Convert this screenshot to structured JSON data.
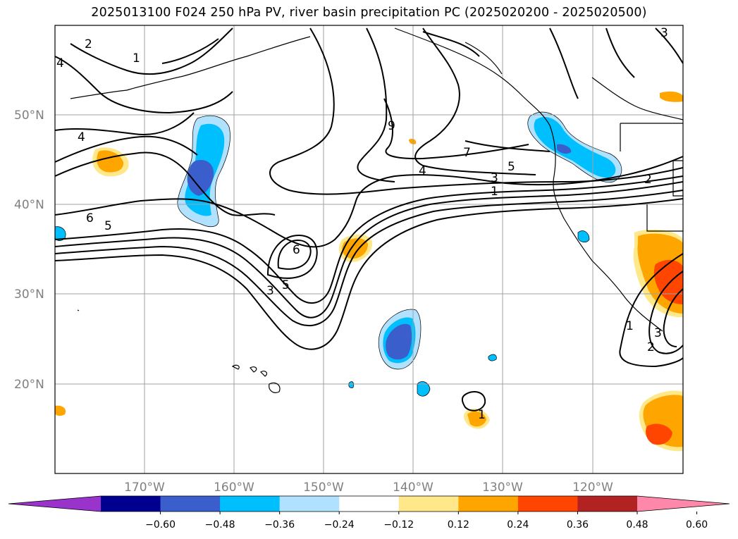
{
  "title": "2025013100 F024 250 hPa PV, river basin precipitation PC (2025020200 - 2025020500)",
  "map": {
    "lat_labels": [
      "50°N",
      "40°N",
      "30°N",
      "20°N"
    ],
    "lon_labels": [
      "170°W",
      "160°W",
      "150°W",
      "140°W",
      "130°W",
      "120°W"
    ],
    "contour_labels": [
      "2",
      "1",
      "4",
      "6",
      "5",
      "6",
      "3",
      "5",
      "9",
      "7",
      "4",
      "3",
      "5",
      "1",
      "2",
      "1",
      "3",
      "2",
      "1",
      "3",
      "4"
    ]
  },
  "colorbar": {
    "ticks": [
      "−0.60",
      "−0.48",
      "−0.36",
      "−0.24",
      "−0.12",
      "0.12",
      "0.24",
      "0.36",
      "0.48",
      "0.60"
    ],
    "colors": [
      "#9933cc",
      "#000090",
      "#3a5fcd",
      "#00bfff",
      "#b0e2ff",
      "#ffffff",
      "#ffe88a",
      "#ffa500",
      "#ff4500",
      "#b22222",
      "#ff88aa"
    ]
  }
}
